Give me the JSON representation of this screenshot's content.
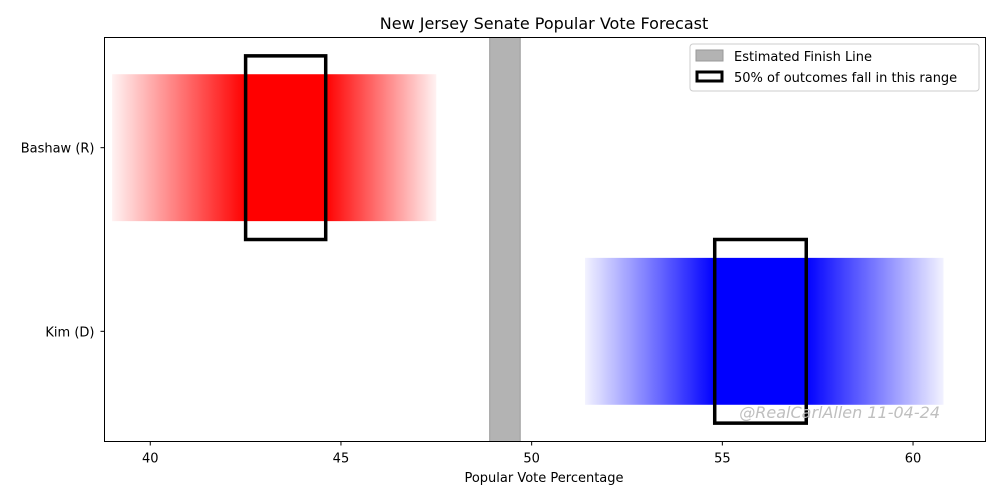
{
  "chart_data": {
    "type": "bar",
    "title": "New Jersey Senate Popular Vote Forecast",
    "xlabel": "Popular Vote Percentage",
    "ylabel": "",
    "xlim": [
      38.8,
      61.9
    ],
    "xticks": [
      40,
      45,
      50,
      55,
      60
    ],
    "categories": [
      "Bashaw (R)",
      "Kim (D)"
    ],
    "series": [
      {
        "name": "Bashaw (R)",
        "color": "#ff0000",
        "range": [
          39.0,
          47.5
        ],
        "interquartile_range": [
          42.5,
          44.6
        ]
      },
      {
        "name": "Kim (D)",
        "color": "#0000ff",
        "range": [
          51.4,
          60.8
        ],
        "interquartile_range": [
          54.8,
          57.2
        ]
      }
    ],
    "finish_line": {
      "range": [
        48.9,
        49.7
      ],
      "color": "#b3b3b3"
    },
    "legend": {
      "position": "top-right",
      "items": [
        "Estimated Finish Line",
        "50% of outcomes fall in this range"
      ]
    },
    "watermark": "@RealCarlAllen 11-04-24",
    "grid": false
  }
}
